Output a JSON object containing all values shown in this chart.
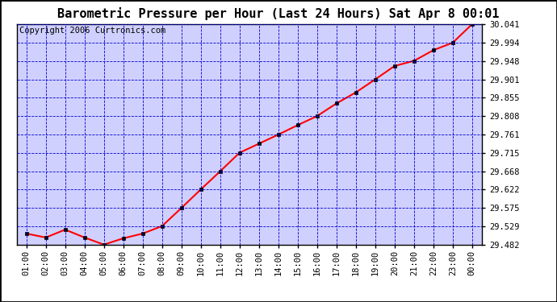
{
  "title": "Barometric Pressure per Hour (Last 24 Hours) Sat Apr 8 00:01",
  "copyright": "Copyright 2006 Curtronics.com",
  "x_labels": [
    "01:00",
    "02:00",
    "03:00",
    "04:00",
    "05:00",
    "06:00",
    "07:00",
    "08:00",
    "09:00",
    "10:00",
    "11:00",
    "12:00",
    "13:00",
    "14:00",
    "15:00",
    "16:00",
    "17:00",
    "18:00",
    "19:00",
    "20:00",
    "21:00",
    "22:00",
    "23:00",
    "00:00"
  ],
  "y_values": [
    29.51,
    29.5,
    29.52,
    29.5,
    29.482,
    29.498,
    29.51,
    29.529,
    29.575,
    29.622,
    29.668,
    29.715,
    29.738,
    29.761,
    29.785,
    29.808,
    29.84,
    29.868,
    29.901,
    29.935,
    29.948,
    29.975,
    29.994,
    30.041
  ],
  "y_ticks": [
    29.482,
    29.529,
    29.575,
    29.622,
    29.668,
    29.715,
    29.761,
    29.808,
    29.855,
    29.901,
    29.948,
    29.994,
    30.041
  ],
  "ylim_min": 29.482,
  "ylim_max": 30.041,
  "plot_bg_color": "#d0d0ff",
  "outer_bg_color": "#ffffff",
  "line_color": "red",
  "marker_color": "black",
  "grid_color": "#0000cc",
  "title_color": "black",
  "copyright_color": "black",
  "tick_label_color": "black",
  "title_fontsize": 11,
  "tick_fontsize": 7.5,
  "copyright_fontsize": 7.5,
  "line_width": 1.5,
  "marker_size": 3.5
}
